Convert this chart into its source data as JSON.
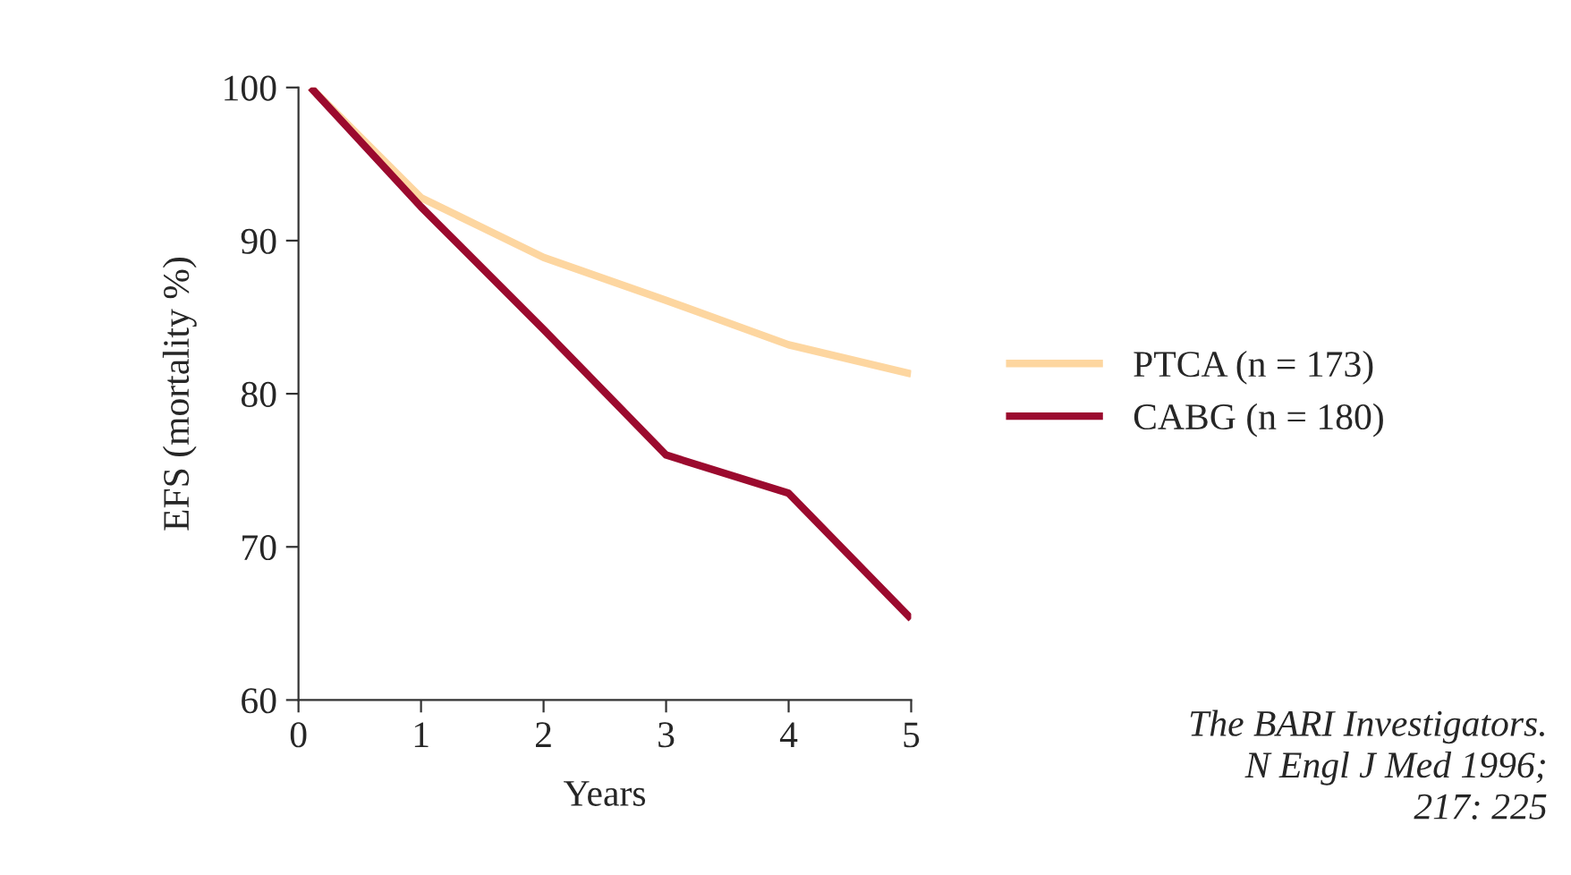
{
  "chart_data": {
    "type": "line",
    "xlabel": "Years",
    "ylabel": "EFS (mortality %)",
    "xlim": [
      0,
      5
    ],
    "ylim": [
      60,
      100
    ],
    "xticks": [
      0,
      1,
      2,
      3,
      4,
      5
    ],
    "yticks": [
      60,
      70,
      80,
      90,
      100
    ],
    "grid": false,
    "legend": "right",
    "marker": "none",
    "line_style": "solid",
    "series": [
      {
        "name": "PTCA (n = 173)",
        "color": "#fdd6a0",
        "x": [
          0.1,
          1,
          2,
          3,
          4,
          5
        ],
        "values": [
          100,
          92.8,
          88.9,
          86.1,
          83.2,
          81.3
        ]
      },
      {
        "name": "CABG (n = 180)",
        "color": "#9b0a2e",
        "x": [
          0.1,
          1,
          2,
          3,
          4,
          5
        ],
        "values": [
          100,
          92.2,
          84.2,
          76.0,
          73.5,
          65.3
        ]
      }
    ],
    "annotations": [
      "The BARI Investigators.\nN Engl J Med 1996;\n217: 225"
    ]
  }
}
